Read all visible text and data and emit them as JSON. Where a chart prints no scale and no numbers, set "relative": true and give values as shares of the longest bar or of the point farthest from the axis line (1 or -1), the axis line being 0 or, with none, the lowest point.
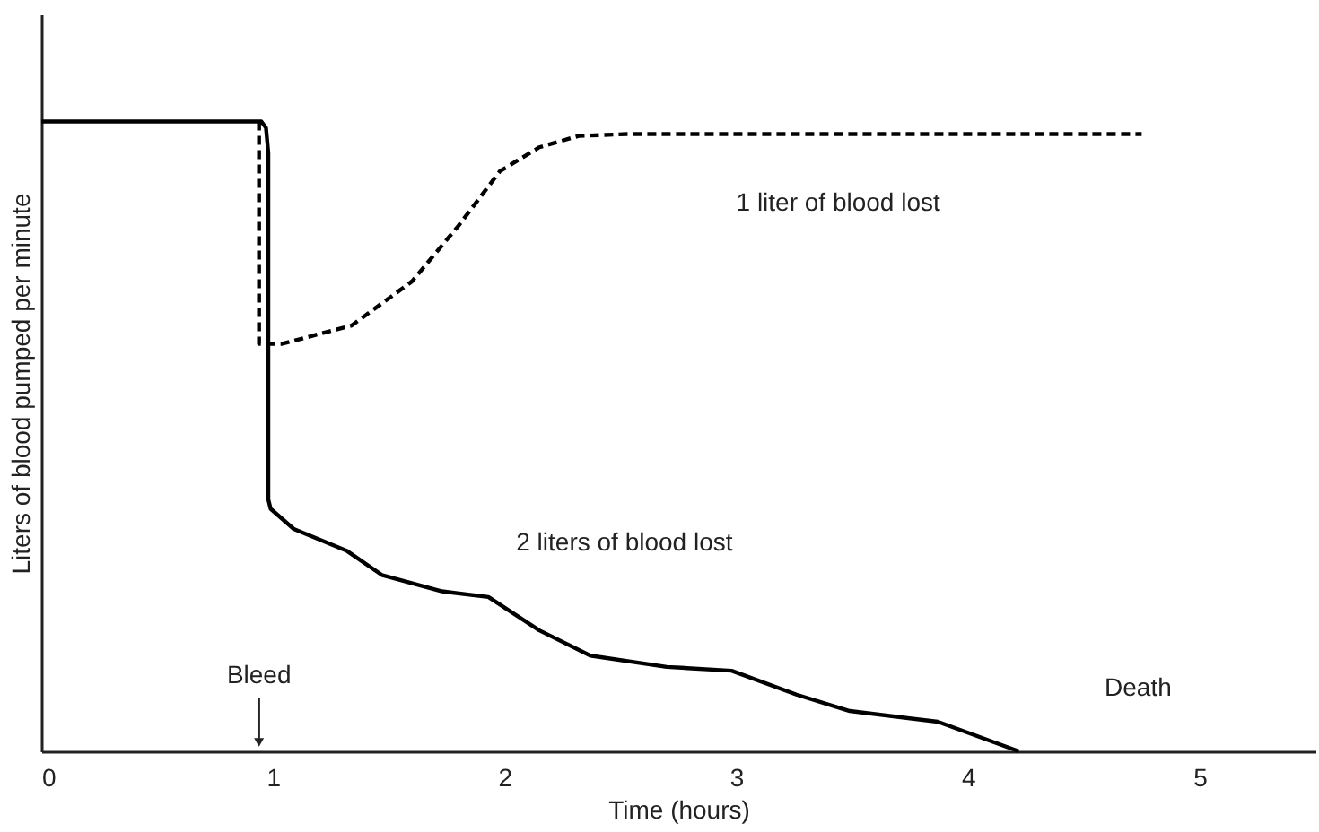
{
  "chart_data": {
    "type": "line",
    "relative": true,
    "xlabel": "Time (hours)",
    "ylabel": "Liters of blood pumped per minute",
    "xlim": [
      0,
      5.5
    ],
    "xticks": [
      0,
      1,
      2,
      3,
      4,
      5
    ],
    "grid": false,
    "marker": "none",
    "series": [
      {
        "name": "2 liters of blood lost",
        "color": "#000000",
        "line_style": "solid",
        "x": [
          0,
          0.95,
          0.97,
          0.98,
          0.98,
          0.99,
          1.09,
          1.32,
          1.47,
          1.73,
          1.93,
          2.15,
          2.37,
          2.7,
          2.98,
          3.26,
          3.49,
          3.87,
          4.22
        ],
        "values": [
          1,
          1,
          0.99,
          0.95,
          0.4,
          0.385,
          0.353,
          0.318,
          0.28,
          0.254,
          0.245,
          0.192,
          0.152,
          0.134,
          0.128,
          0.09,
          0.064,
          0.047,
          0
        ]
      },
      {
        "name": "1 liter of blood lost",
        "color": "#000000",
        "line_style": "dashed",
        "x": [
          0.94,
          0.94,
          1.04,
          1.34,
          1.6,
          1.8,
          1.98,
          2.15,
          2.32,
          2.53,
          4.75
        ],
        "values": [
          1,
          0.647,
          0.647,
          0.676,
          0.746,
          0.834,
          0.921,
          0.959,
          0.977,
          0.98,
          0.98
        ]
      }
    ],
    "annotations": [
      "Bleed",
      "Death"
    ]
  }
}
